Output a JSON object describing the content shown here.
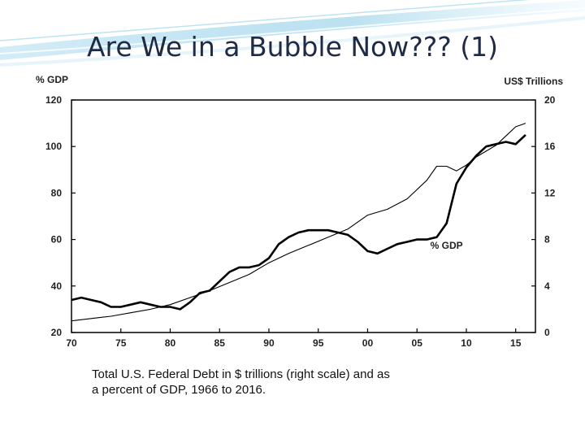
{
  "slide": {
    "title": "Are We in a Bubble Now??? (1)",
    "caption_line1": "Total U.S. Federal Debt in $ trillions (right scale) and as",
    "caption_line2": "a percent of GDP, 1966 to 2016."
  },
  "chart_data": {
    "type": "line",
    "left_axis_label": "% GDP",
    "right_axis_label": "US$ Trillions",
    "left_ylim": [
      20,
      120
    ],
    "left_ticks": [
      120,
      100,
      80,
      60,
      40,
      20
    ],
    "right_ylim": [
      0,
      20
    ],
    "right_ticks": [
      20,
      16,
      12,
      8,
      4,
      0
    ],
    "xlim": [
      1970,
      2017
    ],
    "x_ticks": [
      1970,
      1975,
      1980,
      1985,
      1990,
      1995,
      2000,
      2005,
      2010,
      2015
    ],
    "x_tick_labels": [
      "70",
      "75",
      "80",
      "85",
      "90",
      "95",
      "00",
      "05",
      "10",
      "15"
    ],
    "grid": false,
    "series": [
      {
        "name": "% GDP",
        "axis": "left",
        "color": "#000000",
        "points": [
          [
            1970,
            34
          ],
          [
            1971,
            35
          ],
          [
            1972,
            34
          ],
          [
            1973,
            33
          ],
          [
            1974,
            31
          ],
          [
            1975,
            31
          ],
          [
            1976,
            32
          ],
          [
            1977,
            33
          ],
          [
            1978,
            32
          ],
          [
            1979,
            31
          ],
          [
            1980,
            31
          ],
          [
            1981,
            30
          ],
          [
            1982,
            33
          ],
          [
            1983,
            37
          ],
          [
            1984,
            38
          ],
          [
            1985,
            42
          ],
          [
            1986,
            46
          ],
          [
            1987,
            48
          ],
          [
            1988,
            48
          ],
          [
            1989,
            49
          ],
          [
            1990,
            52
          ],
          [
            1991,
            58
          ],
          [
            1992,
            61
          ],
          [
            1993,
            63
          ],
          [
            1994,
            64
          ],
          [
            1995,
            64
          ],
          [
            1996,
            64
          ],
          [
            1997,
            63
          ],
          [
            1998,
            62
          ],
          [
            1999,
            59
          ],
          [
            2000,
            55
          ],
          [
            2001,
            54
          ],
          [
            2002,
            56
          ],
          [
            2003,
            58
          ],
          [
            2004,
            59
          ],
          [
            2005,
            60
          ],
          [
            2006,
            60
          ],
          [
            2007,
            61
          ],
          [
            2008,
            67
          ],
          [
            2009,
            84
          ],
          [
            2010,
            91
          ],
          [
            2011,
            96
          ],
          [
            2012,
            100
          ],
          [
            2013,
            101
          ],
          [
            2014,
            102
          ],
          [
            2015,
            101
          ],
          [
            2016,
            105
          ]
        ]
      },
      {
        "name": "US$ Trillions",
        "axis": "right",
        "color": "#000000",
        "points": [
          [
            1970,
            1.0
          ],
          [
            1972,
            1.2
          ],
          [
            1974,
            1.4
          ],
          [
            1976,
            1.7
          ],
          [
            1978,
            2.0
          ],
          [
            1980,
            2.4
          ],
          [
            1982,
            3.0
          ],
          [
            1984,
            3.6
          ],
          [
            1986,
            4.3
          ],
          [
            1988,
            5.0
          ],
          [
            1990,
            6.0
          ],
          [
            1992,
            6.8
          ],
          [
            1994,
            7.5
          ],
          [
            1996,
            8.2
          ],
          [
            1998,
            8.9
          ],
          [
            2000,
            10.1
          ],
          [
            2002,
            10.6
          ],
          [
            2004,
            11.5
          ],
          [
            2006,
            13.1
          ],
          [
            2007,
            14.3
          ],
          [
            2008,
            14.3
          ],
          [
            2009,
            13.9
          ],
          [
            2010,
            14.4
          ],
          [
            2011,
            15.1
          ],
          [
            2012,
            15.6
          ],
          [
            2013,
            16.1
          ],
          [
            2014,
            16.9
          ],
          [
            2015,
            17.7
          ],
          [
            2016,
            18.0
          ]
        ]
      }
    ],
    "annotations": [
      {
        "text": "% GDP",
        "x": 2008,
        "y": 56,
        "axis": "left"
      }
    ]
  }
}
